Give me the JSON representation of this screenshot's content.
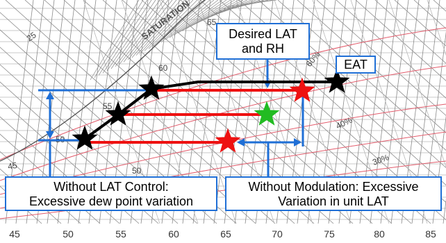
{
  "colors": {
    "grid": "#8a8a8a",
    "grid_light": "#b8b8b8",
    "pink_lines": "#e25b6b",
    "blue": "#1f6fd6",
    "red": "#ee1111",
    "green": "#22bb22",
    "black": "#000000"
  },
  "chart_data": {
    "type": "diagram",
    "background": "psychrometric chart",
    "x_ticks": [
      "45",
      "50",
      "55",
      "60",
      "65",
      "70",
      "75",
      "80",
      "85"
    ],
    "curve_labels": [
      "25",
      "60",
      "55",
      "50",
      "45",
      "65",
      "50",
      "60%",
      "40%",
      "30%"
    ],
    "saturation_label": "SATURATION",
    "process_line_stars": [
      {
        "name": "EAT",
        "color": "black"
      },
      {
        "name": "",
        "color": "black"
      },
      {
        "name": "",
        "color": "black"
      },
      {
        "name": "",
        "color": "black"
      }
    ],
    "desired_point": {
      "color": "green"
    },
    "excess_points": [
      {
        "color": "red"
      },
      {
        "color": "red"
      }
    ]
  },
  "callouts": {
    "desired": {
      "line1": "Desired LAT",
      "line2": "and RH"
    },
    "eat": {
      "line1": "EAT"
    },
    "without_lat": {
      "line1": "Without LAT Control:",
      "line2": "Excessive dew point variation"
    },
    "without_mod": {
      "line1": "Without Modulation: Excessive",
      "line2": "Variation in unit LAT"
    }
  }
}
